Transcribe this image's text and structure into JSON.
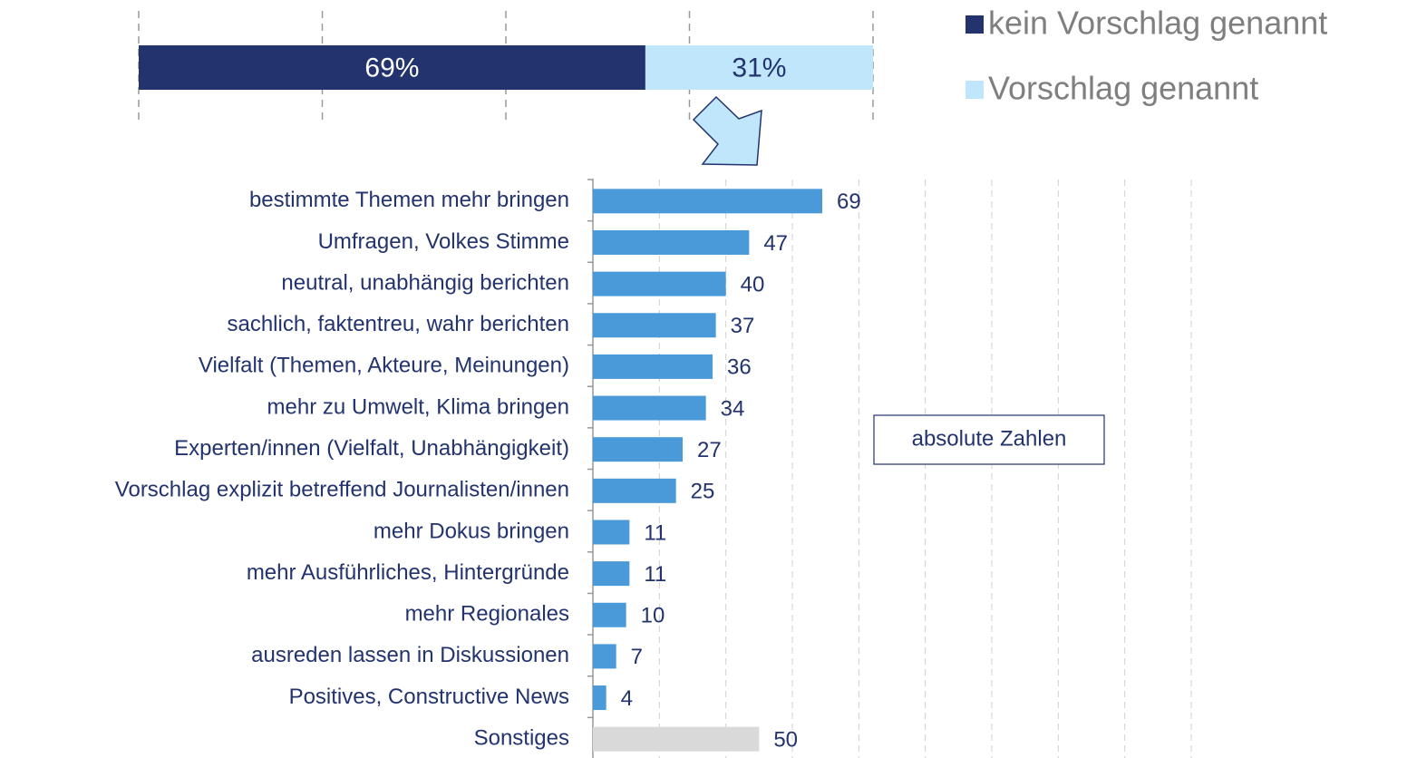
{
  "chart_data": [
    {
      "type": "stacked_bar",
      "orientation": "horizontal",
      "series": [
        {
          "name": "kein Vorschlag genannt",
          "color": "#22336e",
          "values": [
            69
          ],
          "value_labels": [
            "69%"
          ]
        },
        {
          "name": "Vorschlag genannt",
          "color": "#bfe6fa",
          "values": [
            31
          ],
          "value_labels": [
            "31%"
          ]
        }
      ],
      "xlim": [
        0,
        100
      ],
      "xticks": [
        0,
        25,
        50,
        75,
        100
      ],
      "grid": true,
      "show_tick_labels": false,
      "legend": "top-right"
    },
    {
      "type": "bar",
      "orientation": "horizontal",
      "categories": [
        "bestimmte Themen mehr bringen",
        "Umfragen, Volkes Stimme",
        "neutral, unabhängig berichten",
        "sachlich, faktentreu, wahr berichten",
        "Vielfalt (Themen, Akteure, Meinungen)",
        "mehr zu Umwelt, Klima bringen",
        "Experten/innen (Vielfalt, Unabhängigkeit)",
        "Vorschlag explizit betreffend Journalisten/innen",
        "mehr Dokus bringen",
        "mehr Ausführliches, Hintergründe",
        "mehr Regionales",
        "ausreden lassen in Diskussionen",
        "Positives, Constructive News",
        "Sonstiges"
      ],
      "values": [
        69,
        47,
        40,
        37,
        36,
        34,
        27,
        25,
        11,
        11,
        10,
        7,
        4,
        50
      ],
      "colors": [
        "#4a9ad9",
        "#4a9ad9",
        "#4a9ad9",
        "#4a9ad9",
        "#4a9ad9",
        "#4a9ad9",
        "#4a9ad9",
        "#4a9ad9",
        "#4a9ad9",
        "#4a9ad9",
        "#4a9ad9",
        "#4a9ad9",
        "#4a9ad9",
        "#d9d9d9"
      ],
      "xlim": [
        0,
        180
      ],
      "xticks": [
        0,
        20,
        40,
        60,
        80,
        100,
        120,
        140,
        160,
        180
      ],
      "grid": true,
      "show_tick_labels": false,
      "annotation": "absolute Zahlen"
    }
  ]
}
